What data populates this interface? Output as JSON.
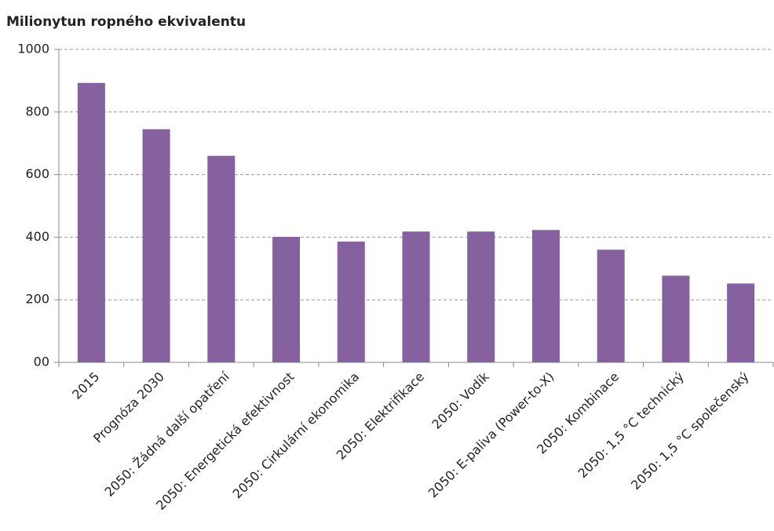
{
  "chart_data": {
    "type": "bar",
    "title": "Milionytun ropného ekvivalentu",
    "categories": [
      "2015",
      "Prognóza 2030",
      "2050: Žádná další opatření",
      "2050: Energetická efektivnost",
      "2050: Cirkulární ekonomika",
      "2050: Elektrifikace",
      "2050: Vodík",
      "2050: E-paliva (Power-to-X)",
      "2050: Kombinace",
      "2050: 1,5 °C technický",
      "2050: 1,5 °C společenský"
    ],
    "values": [
      893,
      745,
      660,
      401,
      386,
      418,
      418,
      423,
      360,
      277,
      252
    ],
    "color": "#8561a0",
    "ylim": [
      0,
      1000
    ],
    "yticks": [
      {
        "value": 0,
        "label": "00"
      },
      200,
      400,
      600,
      800,
      1000
    ],
    "grid": true
  }
}
